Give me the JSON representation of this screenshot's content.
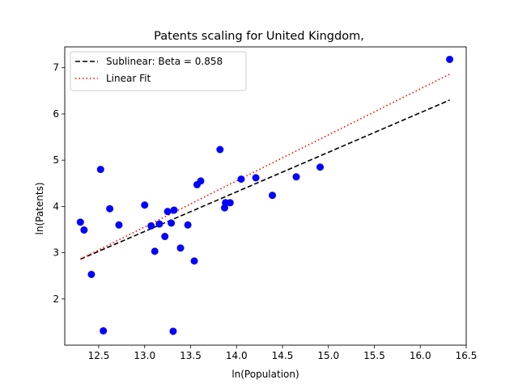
{
  "chart_data": {
    "type": "scatter",
    "title": "Patents scaling for United Kingdom,",
    "xlabel": "ln(Population)",
    "ylabel": "ln(Patents)",
    "xlim": [
      12.13,
      16.5
    ],
    "ylim": [
      1.0,
      7.45
    ],
    "xticks": [
      "12.5",
      "13.0",
      "13.5",
      "14.0",
      "14.5",
      "15.0",
      "15.5",
      "16.0",
      "16.5"
    ],
    "yticks": [
      "2",
      "3",
      "4",
      "5",
      "6",
      "7"
    ],
    "legend_position": "upper-left",
    "grid": false,
    "series": [
      {
        "kind": "scatter",
        "color": "#0000ff",
        "x": [
          12.3,
          12.34,
          12.42,
          12.52,
          12.55,
          12.62,
          12.72,
          13.0,
          13.07,
          13.11,
          13.16,
          13.22,
          13.25,
          13.29,
          13.31,
          13.32,
          13.39,
          13.47,
          13.54,
          13.57,
          13.61,
          13.82,
          13.87,
          13.88,
          13.93,
          14.05,
          14.21,
          14.39,
          14.65,
          14.91,
          16.32
        ],
        "y": [
          3.66,
          3.49,
          2.53,
          4.8,
          1.31,
          3.95,
          3.6,
          4.03,
          3.58,
          3.03,
          3.62,
          3.35,
          3.89,
          3.64,
          1.3,
          3.92,
          3.1,
          3.6,
          2.82,
          4.47,
          4.55,
          5.23,
          3.97,
          4.08,
          4.08,
          4.59,
          4.62,
          4.24,
          4.64,
          4.85,
          7.18
        ]
      },
      {
        "kind": "line",
        "name": "Sublinear: Beta = 0.858",
        "color": "#000000",
        "dash": "dashed",
        "x": [
          12.3,
          16.32
        ],
        "y": [
          2.86,
          6.3
        ]
      },
      {
        "kind": "line",
        "name": "Linear Fit",
        "color": "#ff0000",
        "dash": "dotted",
        "x": [
          12.3,
          16.32
        ],
        "y": [
          2.86,
          6.86
        ]
      }
    ]
  }
}
